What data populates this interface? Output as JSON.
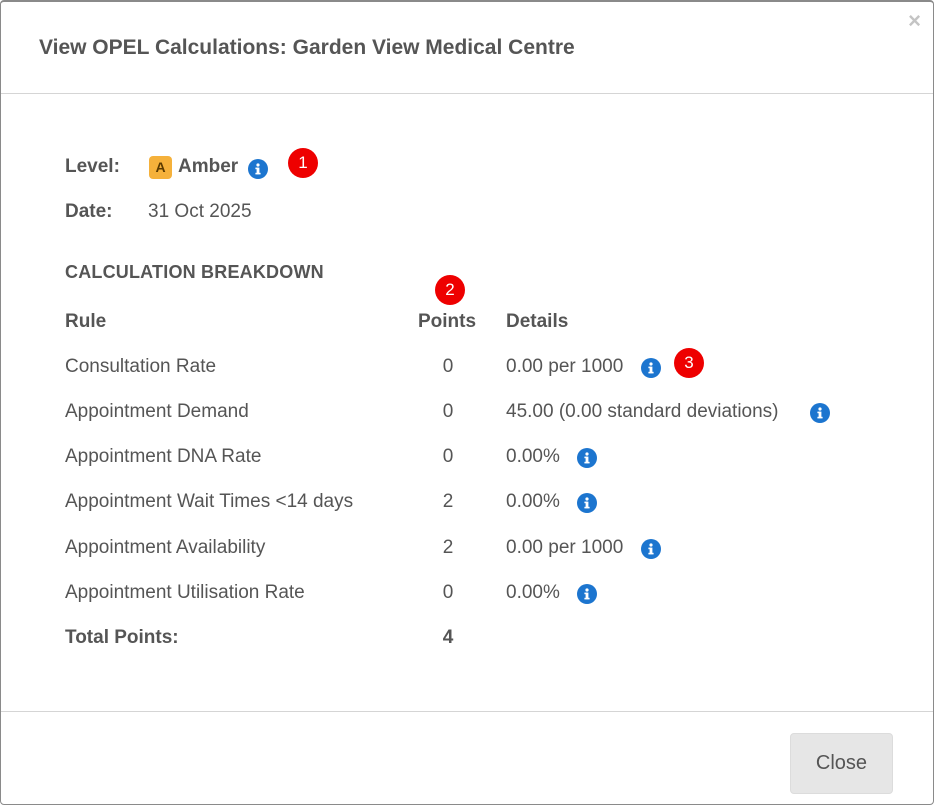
{
  "modal": {
    "title": "View OPEL Calculations: Garden View Medical Centre",
    "close_symbol": "×"
  },
  "summary": {
    "level_label": "Level:",
    "level_badge": "A",
    "level_value": "Amber",
    "level_color": "#f5b13b",
    "date_label": "Date:",
    "date_value": "31 Oct 2025"
  },
  "breakdown": {
    "section_title": "CALCULATION BREAKDOWN",
    "headers": {
      "rule": "Rule",
      "points": "Points",
      "details": "Details"
    },
    "rows": [
      {
        "rule": "Consultation Rate",
        "points": "0",
        "details": "0.00 per 1000"
      },
      {
        "rule": "Appointment Demand",
        "points": "0",
        "details": "45.00 (0.00 standard deviations)"
      },
      {
        "rule": "Appointment DNA Rate",
        "points": "0",
        "details": "0.00%"
      },
      {
        "rule": "Appointment Wait Times <14 days",
        "points": "2",
        "details": "0.00%"
      },
      {
        "rule": "Appointment Availability",
        "points": "2",
        "details": "0.00 per 1000"
      },
      {
        "rule": "Appointment Utilisation Rate",
        "points": "0",
        "details": "0.00%"
      }
    ],
    "total_label": "Total Points:",
    "total_value": "4"
  },
  "markers": [
    "1",
    "2",
    "3"
  ],
  "footer": {
    "close_label": "Close"
  },
  "colors": {
    "info_icon": "#1c75cf",
    "marker": "#ee0000"
  },
  "icons": {
    "info": "info-icon",
    "close": "close-icon"
  }
}
